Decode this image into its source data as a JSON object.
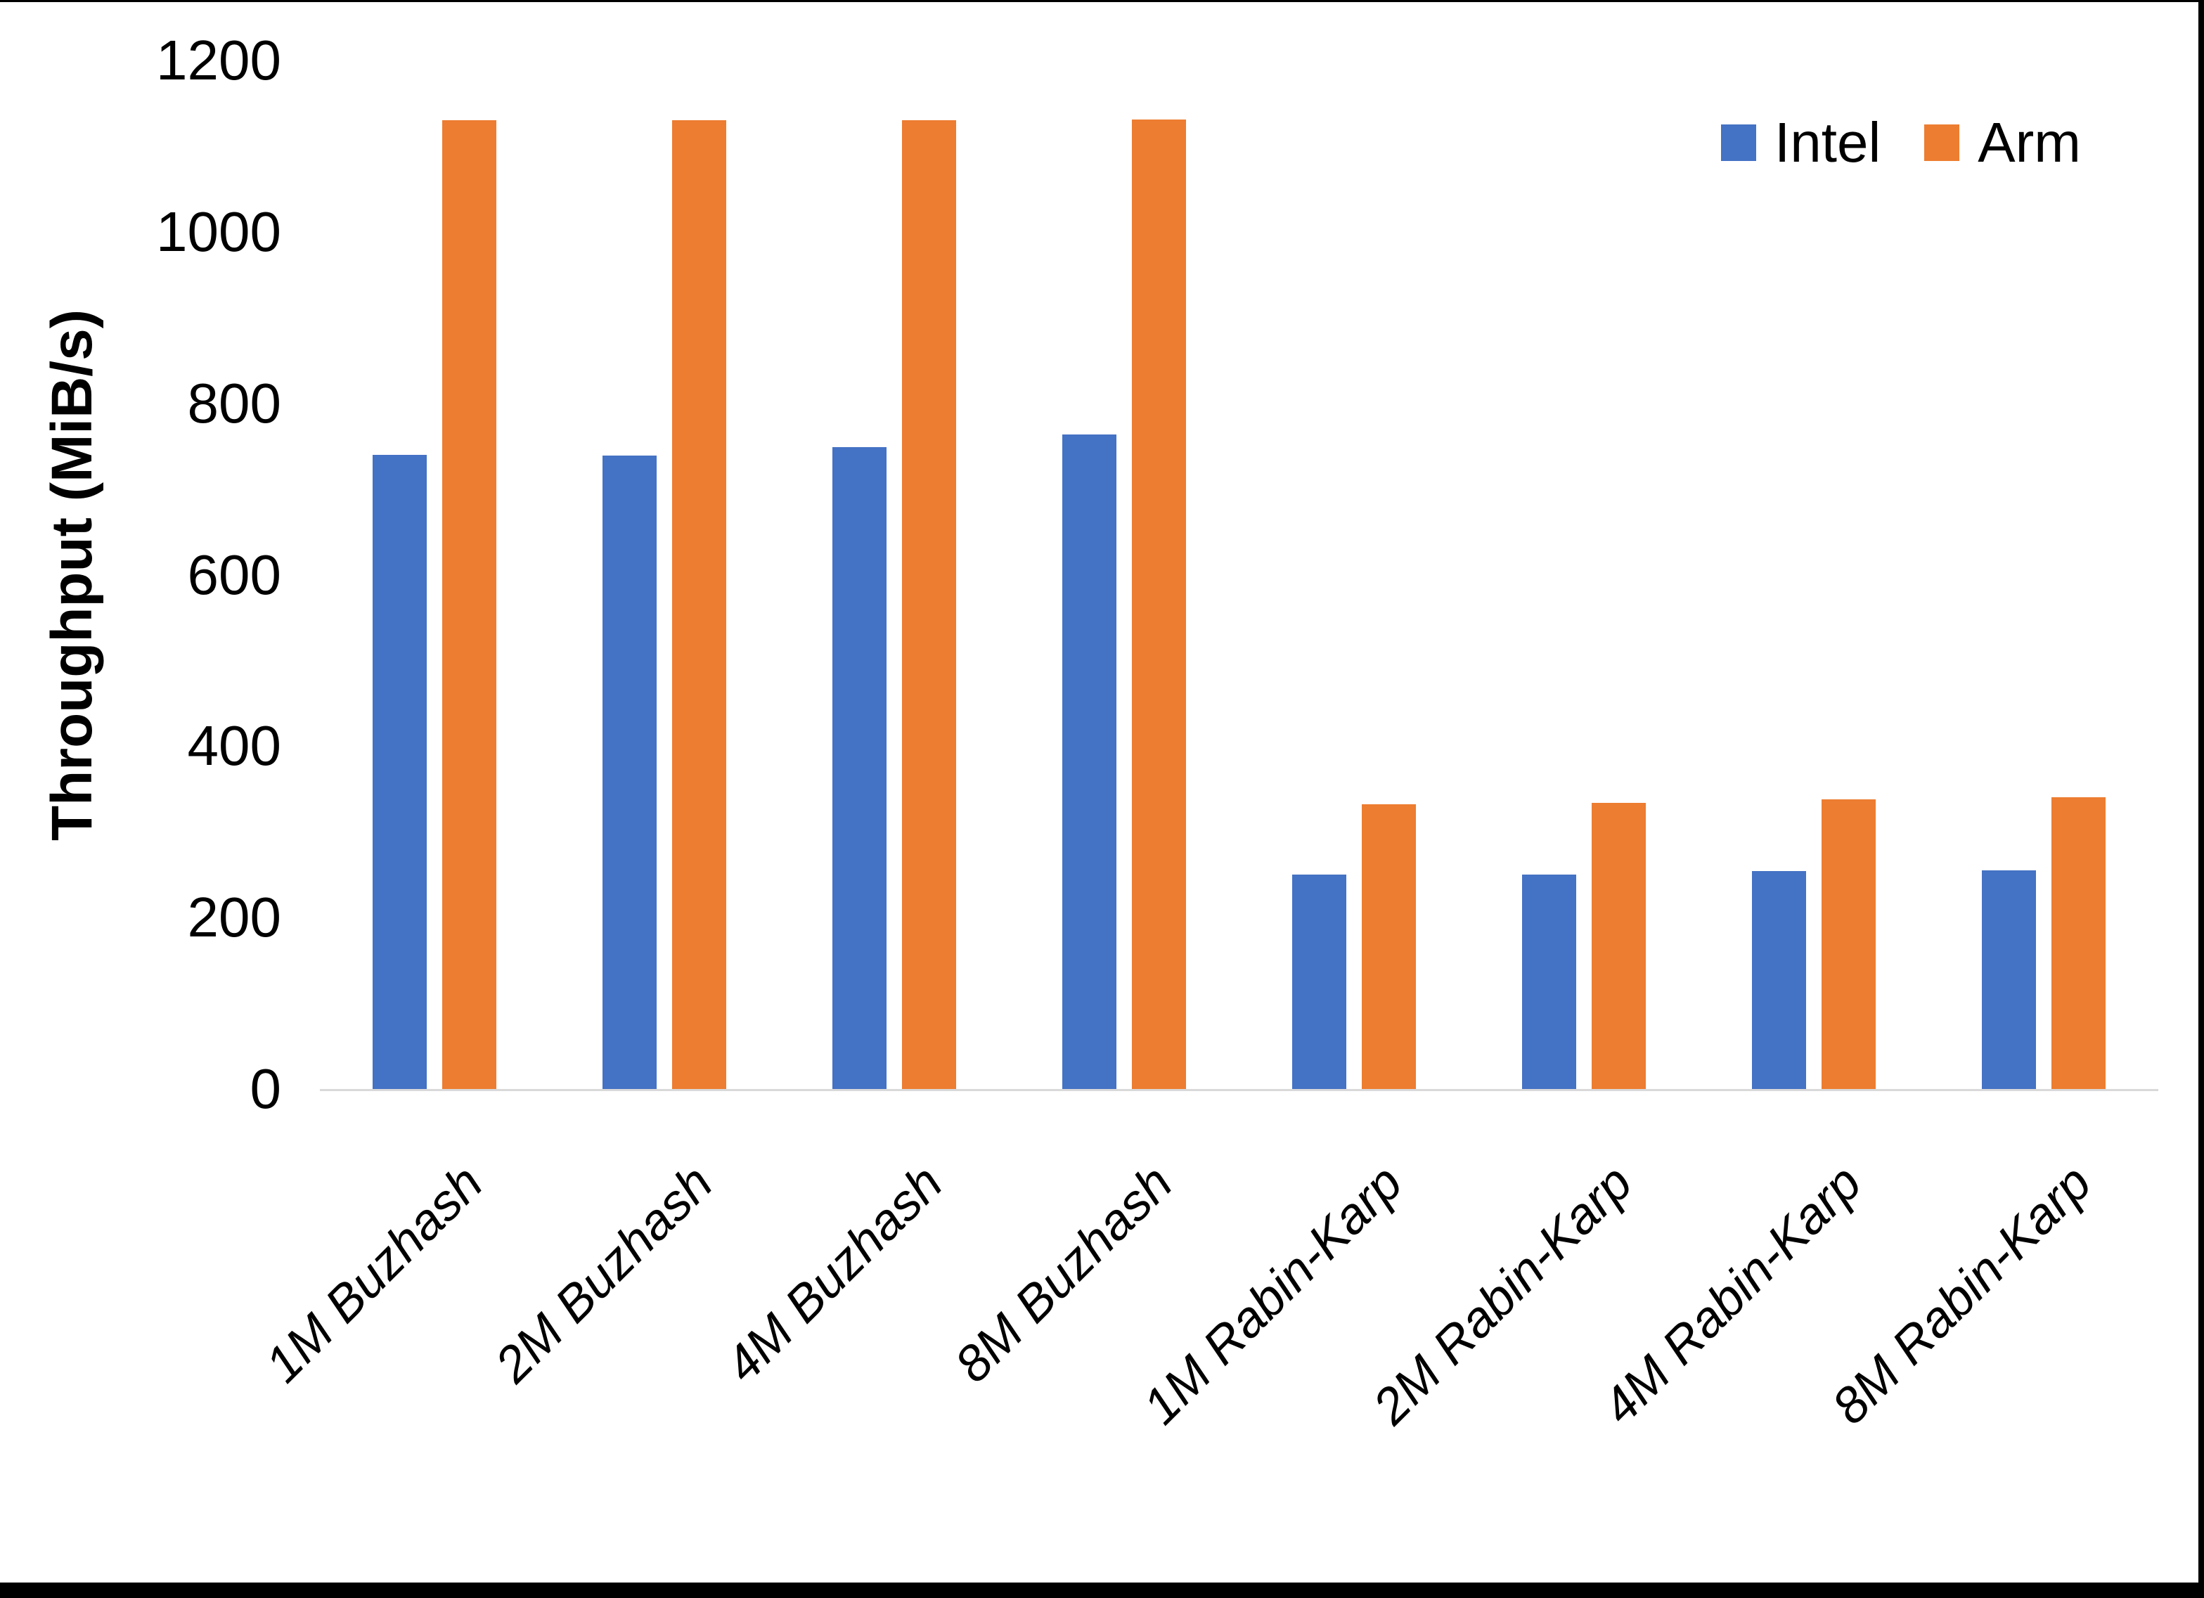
{
  "legend": {
    "position": "top-right",
    "items": [
      {
        "label": "Intel",
        "color": "#4472C4"
      },
      {
        "label": "Arm",
        "color": "#ED7D31"
      }
    ]
  },
  "chart_data": {
    "type": "bar",
    "title": "",
    "xlabel": "",
    "ylabel": "Throughput (MiB/s)",
    "categories": [
      "1M Buzhash",
      "2M Buzhash",
      "4M Buzhash",
      "8M Buzhash",
      "1M Rabin-Karp",
      "2M Rabin-Karp",
      "4M Rabin-Karp",
      "8M Rabin-Karp"
    ],
    "series": [
      {
        "name": "Intel",
        "color": "#4472C4",
        "values": [
          740,
          739,
          749,
          764,
          250,
          250,
          254,
          255
        ]
      },
      {
        "name": "Arm",
        "color": "#ED7D31",
        "values": [
          1130,
          1130,
          1130,
          1131,
          332,
          334,
          338,
          340
        ]
      }
    ],
    "ylim": [
      0,
      1200
    ],
    "yticks": [
      0,
      200,
      400,
      600,
      800,
      1000,
      1200
    ],
    "grid": false,
    "legend_position": "top-right",
    "axis_line_color": "#D9D9D9",
    "background_color": "#FFFFFF",
    "frame_color": "#000000"
  }
}
